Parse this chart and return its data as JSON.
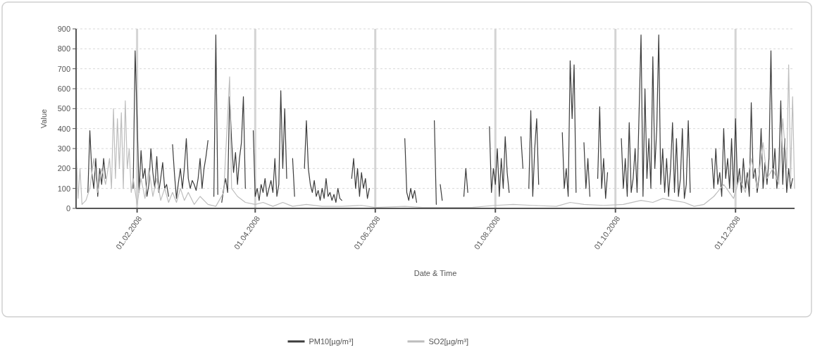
{
  "chart_data": {
    "type": "line",
    "xlabel": "Date & Time",
    "ylabel": "Value",
    "xlim": [
      "2008-01-01",
      "2008-12-31"
    ],
    "xticks": [
      {
        "value": "2008-02-01",
        "label": "01.02.2008"
      },
      {
        "value": "2008-04-01",
        "label": "01.04.2008"
      },
      {
        "value": "2008-06-01",
        "label": "01.06.2008"
      },
      {
        "value": "2008-08-01",
        "label": "01.08.2008"
      },
      {
        "value": "2008-10-01",
        "label": "01.10.2008"
      },
      {
        "value": "2008-12-01",
        "label": "01.12.2008"
      }
    ],
    "ylim": [
      0,
      900
    ],
    "yticks": [
      0,
      100,
      200,
      300,
      400,
      500,
      600,
      700,
      800,
      900
    ],
    "grid": true,
    "legend": "bottom",
    "line_style": "solid",
    "series": [
      {
        "name": "PM10[µg/m³]",
        "color": "#3c3c3c",
        "x": [
          "2008-01-07",
          "2008-01-08",
          "2008-01-09",
          "2008-01-10",
          "2008-01-11",
          "2008-01-12",
          "2008-01-13",
          "2008-01-14",
          "2008-01-15",
          "2008-01-16",
          "2008-01-17",
          "2008-01-30",
          "2008-01-31",
          "2008-02-01",
          "2008-02-02",
          "2008-02-03",
          "2008-02-04",
          "2008-02-05",
          "2008-02-06",
          "2008-02-07",
          "2008-02-08",
          "2008-02-09",
          "2008-02-10",
          "2008-02-11",
          "2008-02-12",
          "2008-02-13",
          "2008-02-14",
          "2008-02-15",
          "2008-02-16",
          "2008-02-17",
          "2008-02-18",
          "2008-02-19",
          "2008-02-20",
          "2008-02-21",
          "2008-02-22",
          "2008-02-23",
          "2008-02-24",
          "2008-02-25",
          "2008-02-26",
          "2008-02-27",
          "2008-02-28",
          "2008-02-29",
          "2008-03-01",
          "2008-03-02",
          "2008-03-03",
          "2008-03-04",
          "2008-03-05",
          "2008-03-06",
          "2008-03-07",
          "2008-03-08",
          "2008-03-09",
          "2008-03-11",
          "2008-03-12",
          "2008-03-13",
          "2008-03-14",
          "2008-03-15",
          "2008-03-16",
          "2008-03-17",
          "2008-03-18",
          "2008-03-19",
          "2008-03-20",
          "2008-03-21",
          "2008-03-22",
          "2008-03-23",
          "2008-03-24",
          "2008-03-25",
          "2008-03-26",
          "2008-03-27",
          "2008-03-28",
          "2008-03-31",
          "2008-04-01",
          "2008-04-02",
          "2008-04-03",
          "2008-04-04",
          "2008-04-05",
          "2008-04-06",
          "2008-04-07",
          "2008-04-08",
          "2008-04-09",
          "2008-04-10",
          "2008-04-11",
          "2008-04-12",
          "2008-04-13",
          "2008-04-14",
          "2008-04-15",
          "2008-04-16",
          "2008-04-17",
          "2008-04-18",
          "2008-04-20",
          "2008-04-21",
          "2008-04-22",
          "2008-04-26",
          "2008-04-27",
          "2008-04-28",
          "2008-04-29",
          "2008-04-30",
          "2008-05-01",
          "2008-05-02",
          "2008-05-03",
          "2008-05-04",
          "2008-05-05",
          "2008-05-06",
          "2008-05-07",
          "2008-05-08",
          "2008-05-09",
          "2008-05-10",
          "2008-05-11",
          "2008-05-12",
          "2008-05-13",
          "2008-05-14",
          "2008-05-15",
          "2008-05-16",
          "2008-05-20",
          "2008-05-21",
          "2008-05-22",
          "2008-05-23",
          "2008-05-24",
          "2008-05-25",
          "2008-05-26",
          "2008-05-27",
          "2008-05-28",
          "2008-05-29",
          "2008-05-30",
          "2008-06-16",
          "2008-06-17",
          "2008-06-18",
          "2008-06-19",
          "2008-06-20",
          "2008-06-21",
          "2008-06-22",
          "2008-06-23",
          "2008-07-01",
          "2008-07-02",
          "2008-07-03",
          "2008-07-04",
          "2008-07-05",
          "2008-07-06",
          "2008-07-16",
          "2008-07-17",
          "2008-07-18",
          "2008-07-19",
          "2008-07-29",
          "2008-07-30",
          "2008-07-31",
          "2008-08-01",
          "2008-08-02",
          "2008-08-03",
          "2008-08-04",
          "2008-08-05",
          "2008-08-06",
          "2008-08-07",
          "2008-08-08",
          "2008-08-09",
          "2008-08-14",
          "2008-08-15",
          "2008-08-16",
          "2008-08-18",
          "2008-08-19",
          "2008-08-20",
          "2008-08-21",
          "2008-08-22",
          "2008-08-23",
          "2008-08-24",
          "2008-09-04",
          "2008-09-05",
          "2008-09-06",
          "2008-09-07",
          "2008-09-08",
          "2008-09-09",
          "2008-09-10",
          "2008-09-11",
          "2008-09-12",
          "2008-09-15",
          "2008-09-16",
          "2008-09-17",
          "2008-09-18",
          "2008-09-19",
          "2008-09-22",
          "2008-09-23",
          "2008-09-24",
          "2008-09-25",
          "2008-09-26",
          "2008-09-27",
          "2008-09-28",
          "2008-10-04",
          "2008-10-05",
          "2008-10-06",
          "2008-10-07",
          "2008-10-08",
          "2008-10-09",
          "2008-10-10",
          "2008-10-11",
          "2008-10-12",
          "2008-10-14",
          "2008-10-15",
          "2008-10-16",
          "2008-10-17",
          "2008-10-18",
          "2008-10-19",
          "2008-10-20",
          "2008-10-21",
          "2008-10-22",
          "2008-10-23",
          "2008-10-24",
          "2008-10-25",
          "2008-10-26",
          "2008-10-27",
          "2008-10-28",
          "2008-10-29",
          "2008-10-30",
          "2008-10-31",
          "2008-11-01",
          "2008-11-02",
          "2008-11-03",
          "2008-11-04",
          "2008-11-05",
          "2008-11-06",
          "2008-11-07",
          "2008-11-08",
          "2008-11-09",
          "2008-11-19",
          "2008-11-20",
          "2008-11-21",
          "2008-11-22",
          "2008-11-23",
          "2008-11-24",
          "2008-11-25",
          "2008-11-26",
          "2008-11-27",
          "2008-11-28",
          "2008-11-29",
          "2008-11-30",
          "2008-12-01",
          "2008-12-02",
          "2008-12-03",
          "2008-12-04",
          "2008-12-05",
          "2008-12-06",
          "2008-12-07",
          "2008-12-08",
          "2008-12-09",
          "2008-12-10",
          "2008-12-11",
          "2008-12-12",
          "2008-12-13",
          "2008-12-14",
          "2008-12-15",
          "2008-12-16",
          "2008-12-17",
          "2008-12-18",
          "2008-12-19",
          "2008-12-20",
          "2008-12-21",
          "2008-12-22",
          "2008-12-23",
          "2008-12-24",
          "2008-12-25",
          "2008-12-26",
          "2008-12-27",
          "2008-12-28",
          "2008-12-29",
          "2008-12-30"
        ],
        "values": [
          80,
          390,
          180,
          100,
          250,
          60,
          200,
          120,
          250,
          150,
          null,
          100,
          790,
          450,
          80,
          290,
          150,
          200,
          60,
          120,
          300,
          180,
          100,
          260,
          80,
          150,
          230,
          100,
          120,
          60,
          null,
          320,
          170,
          50,
          130,
          200,
          100,
          200,
          350,
          150,
          100,
          140,
          120,
          90,
          150,
          250,
          100,
          200,
          260,
          340,
          null,
          60,
          870,
          70,
          null,
          30,
          100,
          150,
          80,
          560,
          340,
          180,
          280,
          120,
          250,
          330,
          560,
          100,
          null,
          390,
          60,
          100,
          40,
          120,
          80,
          150,
          60,
          100,
          140,
          80,
          250,
          60,
          120,
          590,
          200,
          500,
          150,
          null,
          250,
          60,
          null,
          200,
          440,
          200,
          120,
          80,
          140,
          60,
          90,
          40,
          100,
          50,
          150,
          60,
          80,
          40,
          70,
          30,
          100,
          50,
          40,
          null,
          150,
          250,
          100,
          200,
          60,
          180,
          100,
          150,
          50,
          100,
          null,
          350,
          80,
          40,
          100,
          50,
          90,
          30,
          null,
          440,
          20,
          null,
          120,
          40,
          null,
          60,
          200,
          80,
          null,
          410,
          80,
          200,
          120,
          300,
          60,
          250,
          100,
          360,
          180,
          80,
          null,
          360,
          200,
          null,
          100,
          490,
          60,
          300,
          450,
          120,
          null,
          380,
          100,
          200,
          60,
          740,
          450,
          720,
          80,
          null,
          330,
          100,
          250,
          60,
          null,
          150,
          510,
          100,
          250,
          50,
          180,
          null,
          350,
          100,
          250,
          60,
          430,
          80,
          150,
          300,
          80,
          870,
          60,
          600,
          150,
          350,
          100,
          760,
          200,
          400,
          870,
          120,
          300,
          80,
          250,
          60,
          200,
          430,
          80,
          350,
          60,
          150,
          400,
          50,
          120,
          440,
          80,
          null,
          250,
          100,
          300,
          120,
          180,
          60,
          400,
          150,
          250,
          100,
          350,
          80,
          450,
          120,
          200,
          80,
          250,
          100,
          180,
          60,
          530,
          150,
          200,
          80,
          160,
          400,
          100,
          230,
          120,
          250,
          790,
          150,
          300,
          100,
          200,
          540,
          120,
          350,
          80,
          200,
          100,
          150
        ]
      },
      {
        "name": "SO2[µg/m³]",
        "color": "#bdbdbd",
        "x": [
          "2008-01-01",
          "2008-01-02",
          "2008-01-03",
          "2008-01-04",
          "2008-01-06",
          "2008-01-08",
          "2008-01-10",
          "2008-01-12",
          "2008-01-14",
          "2008-01-16",
          "2008-01-18",
          "2008-01-19",
          "2008-01-20",
          "2008-01-21",
          "2008-01-22",
          "2008-01-23",
          "2008-01-24",
          "2008-01-25",
          "2008-01-26",
          "2008-01-27",
          "2008-01-28",
          "2008-01-29",
          "2008-01-30",
          "2008-02-01",
          "2008-02-03",
          "2008-02-05",
          "2008-02-07",
          "2008-02-09",
          "2008-02-11",
          "2008-02-13",
          "2008-02-15",
          "2008-02-17",
          "2008-02-19",
          "2008-02-21",
          "2008-02-23",
          "2008-02-25",
          "2008-02-27",
          "2008-03-01",
          "2008-03-04",
          "2008-03-08",
          "2008-03-12",
          "2008-03-16",
          "2008-03-19",
          "2008-03-20",
          "2008-03-23",
          "2008-03-27",
          "2008-04-01",
          "2008-04-05",
          "2008-04-10",
          "2008-04-15",
          "2008-04-20",
          "2008-04-27",
          "2008-05-05",
          "2008-05-15",
          "2008-05-25",
          "2008-06-01",
          "2008-06-16",
          "2008-06-25",
          "2008-07-05",
          "2008-07-20",
          "2008-08-01",
          "2008-08-10",
          "2008-08-20",
          "2008-09-01",
          "2008-09-08",
          "2008-09-15",
          "2008-09-25",
          "2008-10-05",
          "2008-10-14",
          "2008-10-20",
          "2008-10-25",
          "2008-10-30",
          "2008-11-05",
          "2008-11-10",
          "2008-11-15",
          "2008-11-20",
          "2008-11-25",
          "2008-11-30",
          "2008-12-03",
          "2008-12-06",
          "2008-12-09",
          "2008-12-12",
          "2008-12-15",
          "2008-12-17",
          "2008-12-20",
          "2008-12-23",
          "2008-12-25",
          "2008-12-27",
          "2008-12-28",
          "2008-12-29",
          "2008-12-30",
          "2008-12-31"
        ],
        "values": [
          300,
          50,
          200,
          20,
          40,
          100,
          250,
          80,
          200,
          120,
          250,
          100,
          500,
          150,
          450,
          200,
          480,
          100,
          540,
          200,
          300,
          80,
          150,
          20,
          150,
          50,
          200,
          60,
          150,
          40,
          100,
          30,
          80,
          30,
          100,
          40,
          80,
          20,
          60,
          20,
          10,
          80,
          660,
          100,
          60,
          30,
          20,
          30,
          10,
          30,
          10,
          20,
          10,
          10,
          15,
          5,
          10,
          5,
          5,
          5,
          15,
          20,
          15,
          10,
          30,
          20,
          15,
          20,
          40,
          30,
          50,
          40,
          30,
          10,
          20,
          60,
          120,
          50,
          150,
          80,
          250,
          100,
          330,
          150,
          200,
          120,
          450,
          200,
          720,
          150,
          560,
          100
        ]
      }
    ]
  }
}
